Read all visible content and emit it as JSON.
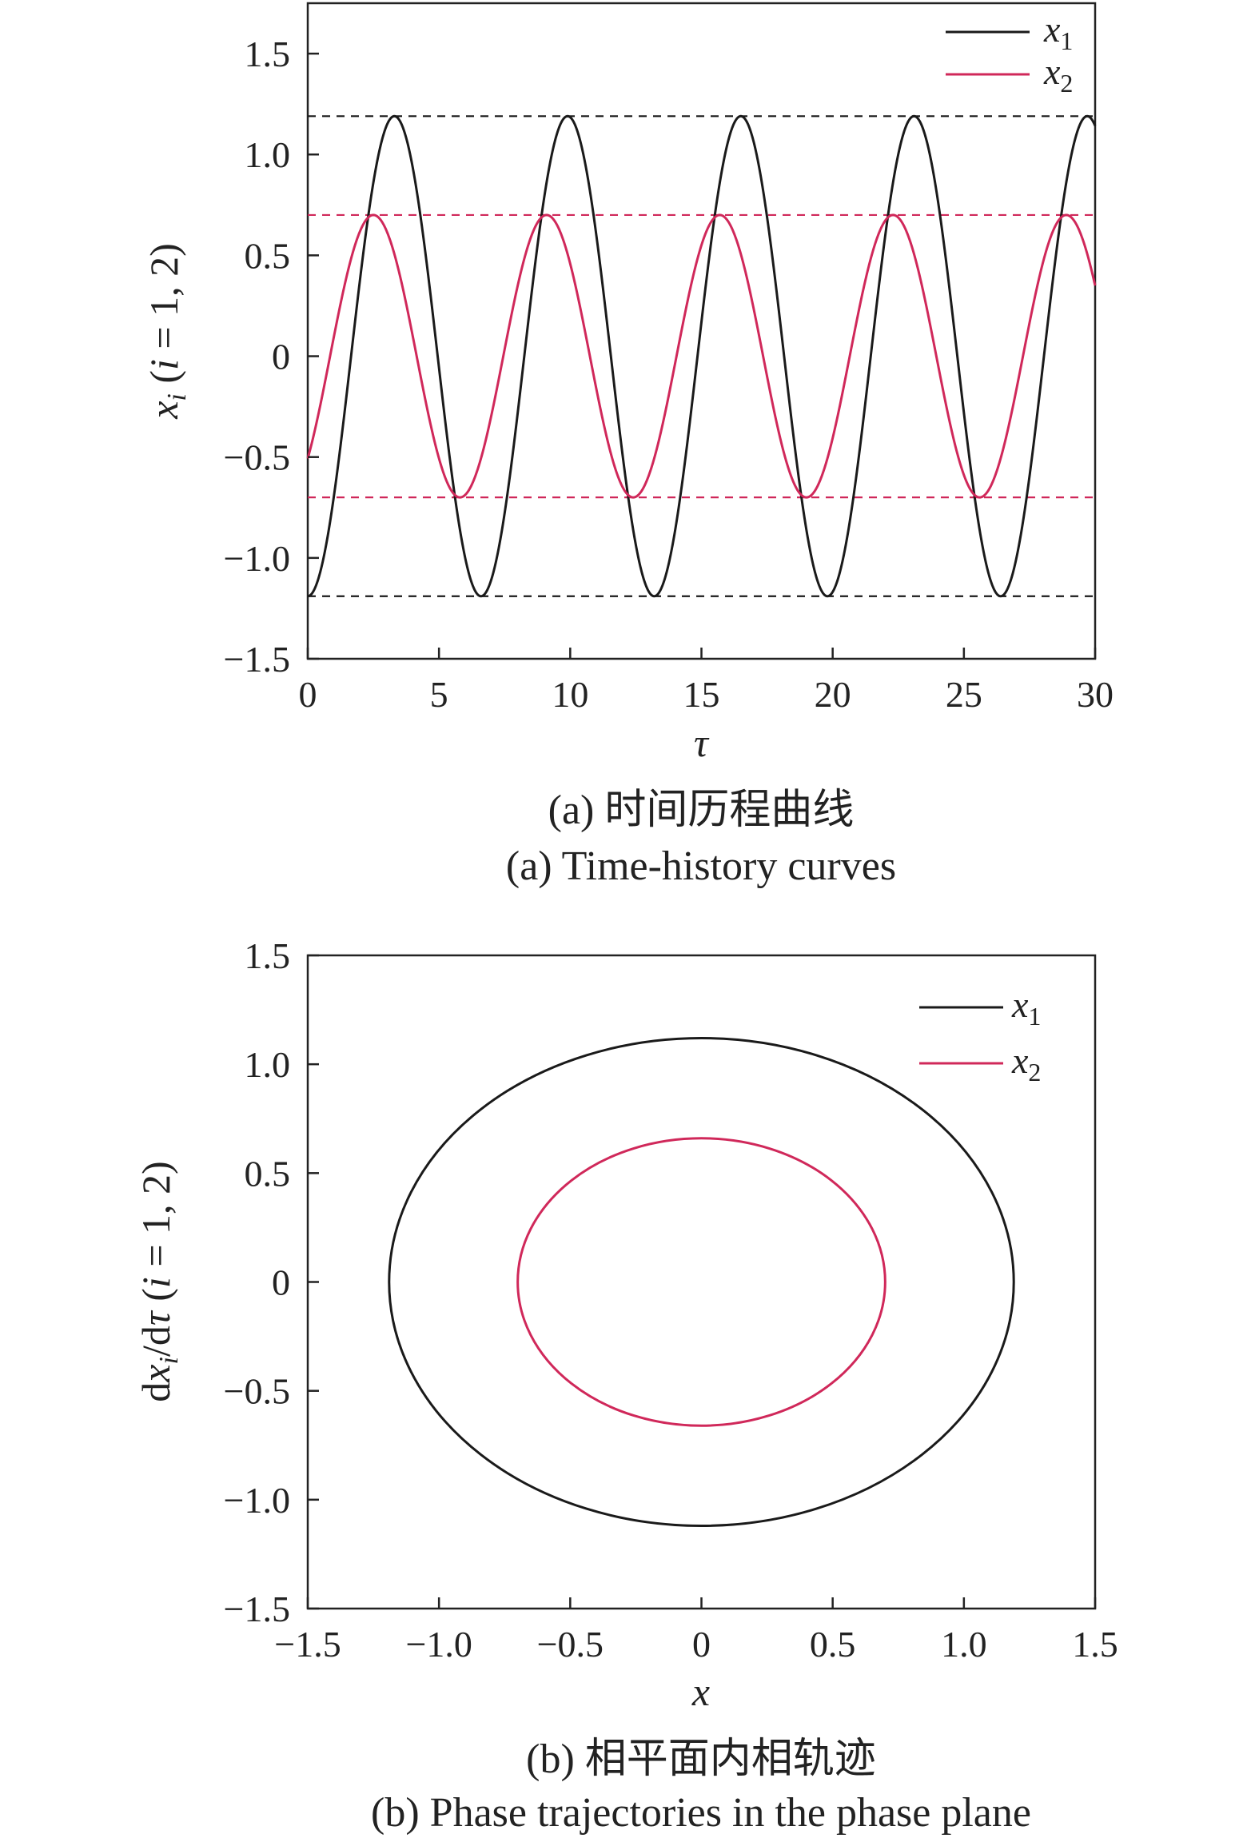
{
  "chart_data": [
    {
      "type": "line",
      "xlabel": "τ",
      "ylabel": "x_i (i = 1, 2)",
      "xlim": [
        0,
        30
      ],
      "ylim": [
        -1.5,
        1.75
      ],
      "xticks": [
        "0",
        "5",
        "10",
        "15",
        "20",
        "25",
        "30"
      ],
      "yticks": [
        "1.5",
        "1.0",
        "0.5",
        "0",
        "−0.5",
        "−1.0",
        "−1.5"
      ],
      "legend": "top-right",
      "series": [
        {
          "name": "x1",
          "color": "#1a1a1a",
          "amplitude": 1.19,
          "period": 6.6,
          "phase_shift": 0.0
        },
        {
          "name": "x2",
          "color": "#d0285a",
          "amplitude": 0.7,
          "period": 6.6,
          "phase_shift": -0.8
        }
      ],
      "reference_lines": [
        {
          "y": 1.19,
          "color": "#1a1a1a",
          "style": "dashed"
        },
        {
          "y": -1.19,
          "color": "#1a1a1a",
          "style": "dashed"
        },
        {
          "y": 0.7,
          "color": "#d0285a",
          "style": "dashed"
        },
        {
          "y": -0.7,
          "color": "#d0285a",
          "style": "dashed"
        }
      ],
      "caption_cn": "(a) 时间历程曲线",
      "caption_en": "(a) Time-history curves"
    },
    {
      "type": "line",
      "xlabel": "x",
      "ylabel": "dx_i/dτ (i = 1, 2)",
      "xlim": [
        -1.5,
        1.5
      ],
      "ylim": [
        -1.5,
        1.5
      ],
      "xticks": [
        "−1.5",
        "−1.0",
        "−0.5",
        "0",
        "0.5",
        "1.0",
        "1.5"
      ],
      "yticks": [
        "1.5",
        "1.0",
        "0.5",
        "0",
        "−0.5",
        "−1.0",
        "−1.5"
      ],
      "legend": "top-right",
      "series": [
        {
          "name": "x1",
          "color": "#1a1a1a",
          "rx": 1.19,
          "ry": 1.12
        },
        {
          "name": "x2",
          "color": "#d0285a",
          "rx": 0.7,
          "ry": 0.66
        }
      ],
      "caption_cn": "(b) 相平面内相轨迹",
      "caption_en": "(b) Phase trajectories in the phase plane"
    }
  ],
  "legend_labels": {
    "x1_base": "x",
    "x1_sub": "1",
    "x2_base": "x",
    "x2_sub": "2"
  }
}
